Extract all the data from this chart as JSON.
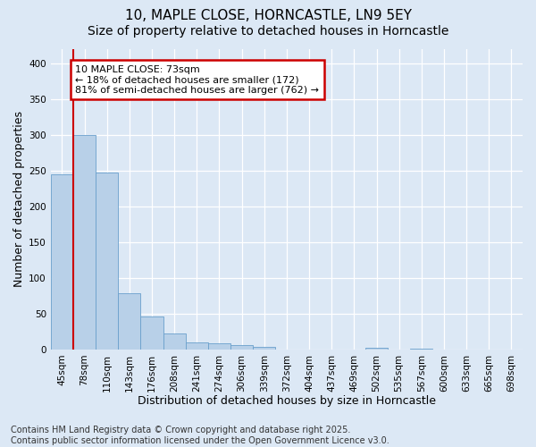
{
  "title_line1": "10, MAPLE CLOSE, HORNCASTLE, LN9 5EY",
  "title_line2": "Size of property relative to detached houses in Horncastle",
  "xlabel": "Distribution of detached houses by size in Horncastle",
  "ylabel": "Number of detached properties",
  "categories": [
    "45sqm",
    "78sqm",
    "110sqm",
    "143sqm",
    "176sqm",
    "208sqm",
    "241sqm",
    "274sqm",
    "306sqm",
    "339sqm",
    "372sqm",
    "404sqm",
    "437sqm",
    "469sqm",
    "502sqm",
    "535sqm",
    "567sqm",
    "600sqm",
    "633sqm",
    "665sqm",
    "698sqm"
  ],
  "values": [
    245,
    300,
    248,
    78,
    46,
    22,
    10,
    9,
    6,
    3,
    0,
    0,
    0,
    0,
    2,
    0,
    1,
    0,
    0,
    0,
    0
  ],
  "bar_color": "#b8d0e8",
  "bar_edge_color": "#6aa0cc",
  "vline_color": "#cc0000",
  "vline_position": 0.5,
  "annotation_text": "10 MAPLE CLOSE: 73sqm\n← 18% of detached houses are smaller (172)\n81% of semi-detached houses are larger (762) →",
  "annotation_box_color": "#ffffff",
  "annotation_box_edge": "#cc0000",
  "ylim": [
    0,
    420
  ],
  "yticks": [
    0,
    50,
    100,
    150,
    200,
    250,
    300,
    350,
    400
  ],
  "background_color": "#dce8f5",
  "grid_color": "#ffffff",
  "footnote": "Contains HM Land Registry data © Crown copyright and database right 2025.\nContains public sector information licensed under the Open Government Licence v3.0.",
  "title_fontsize": 11,
  "subtitle_fontsize": 10,
  "axis_label_fontsize": 9,
  "tick_fontsize": 7.5,
  "footnote_fontsize": 7,
  "ann_fontsize": 8
}
